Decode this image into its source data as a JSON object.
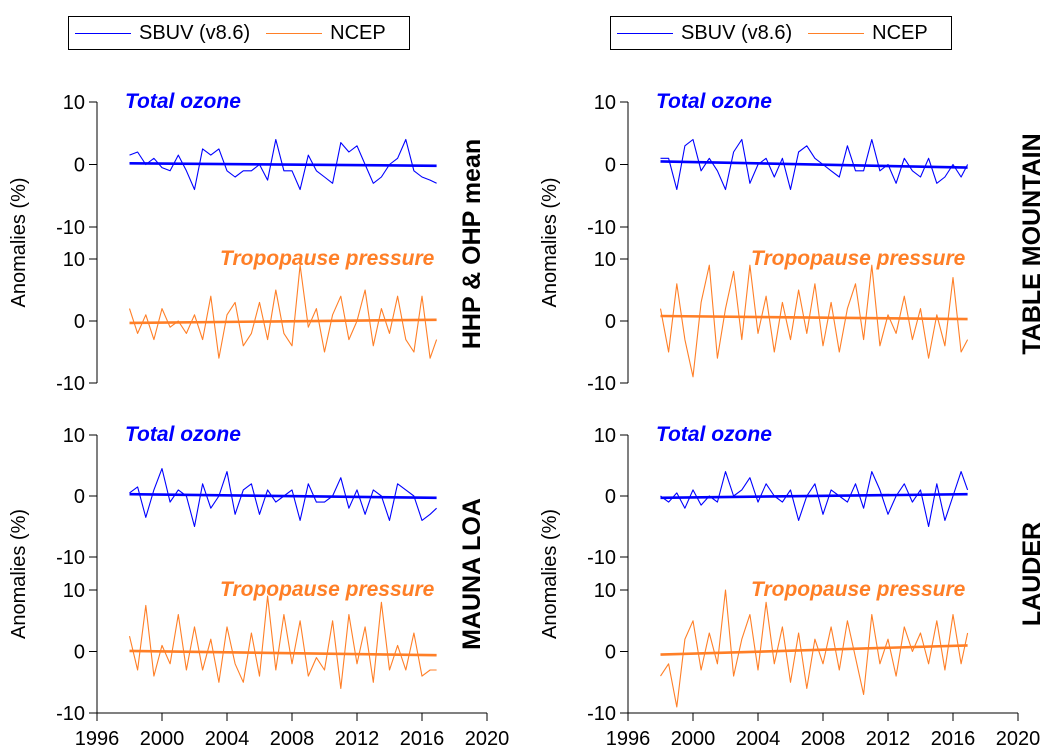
{
  "legends": [
    {
      "items": [
        {
          "label": "SBUV (v8.6)",
          "color": "#0000ff"
        },
        {
          "label": "NCEP",
          "color": "#ff7f27"
        }
      ]
    },
    {
      "items": [
        {
          "label": "SBUV (v8.6)",
          "color": "#0000ff"
        },
        {
          "label": "NCEP",
          "color": "#ff7f27"
        }
      ]
    }
  ],
  "ylabel": "Anomalies (%)",
  "x_ticks": [
    "1996",
    "2000",
    "2004",
    "2008",
    "2012",
    "2016",
    "2020"
  ],
  "chart_data": [
    {
      "type": "line",
      "station": "HHP & OHP mean",
      "xlim": [
        1996,
        2020
      ],
      "subplots": [
        {
          "title": "Total ozone",
          "ylim": [
            -10,
            10
          ],
          "yticks": [
            "10",
            "0",
            "-10"
          ],
          "color": "#0000ff",
          "series": [
            {
              "name": "SBUV (v8.6)",
              "x": [
                1998.0,
                1998.5,
                1999.0,
                1999.5,
                2000.0,
                2000.5,
                2001.0,
                2001.5,
                2002.0,
                2002.5,
                2003.0,
                2003.5,
                2004.0,
                2004.5,
                2005.0,
                2005.5,
                2006.0,
                2006.5,
                2007.0,
                2007.5,
                2008.0,
                2008.5,
                2009.0,
                2009.5,
                2010.0,
                2010.5,
                2011.0,
                2011.5,
                2012.0,
                2012.5,
                2013.0,
                2013.5,
                2014.0,
                2014.5,
                2015.0,
                2015.5,
                2016.0,
                2016.5,
                2016.9
              ],
              "y": [
                1.5,
                2,
                0,
                1,
                -0.5,
                -1,
                1.5,
                -1,
                -4,
                2.5,
                1.5,
                2.5,
                -1,
                -2,
                -1,
                -1,
                0,
                -2.5,
                4,
                -1,
                -1,
                -4,
                1.5,
                -1,
                -2,
                -3,
                3.5,
                2,
                3,
                0,
                -3,
                -2,
                0,
                1,
                4,
                -1,
                -2,
                -2.5,
                -3
              ]
            },
            {
              "name": "trend",
              "x": [
                1998,
                2016.9
              ],
              "y": [
                0.2,
                -0.2
              ]
            }
          ]
        },
        {
          "title": "Tropopause pressure",
          "ylim": [
            -10,
            10
          ],
          "yticks": [
            "10",
            "0",
            "-10"
          ],
          "color": "#ff7f27",
          "series": [
            {
              "name": "NCEP",
              "x": [
                1998.0,
                1998.5,
                1999.0,
                1999.5,
                2000.0,
                2000.5,
                2001.0,
                2001.5,
                2002.0,
                2002.5,
                2003.0,
                2003.5,
                2004.0,
                2004.5,
                2005.0,
                2005.5,
                2006.0,
                2006.5,
                2007.0,
                2007.5,
                2008.0,
                2008.5,
                2009.0,
                2009.5,
                2010.0,
                2010.5,
                2011.0,
                2011.5,
                2012.0,
                2012.5,
                2013.0,
                2013.5,
                2014.0,
                2014.5,
                2015.0,
                2015.5,
                2016.0,
                2016.5,
                2016.9
              ],
              "y": [
                2,
                -2,
                1,
                -3,
                2,
                -1,
                0,
                -2,
                1,
                -3,
                4,
                -6,
                1,
                3,
                -4,
                -2,
                3,
                -3,
                5,
                -2,
                -4,
                9,
                -1,
                2,
                -5,
                1,
                4,
                -3,
                0,
                5,
                -4,
                2,
                -2,
                4,
                -3,
                -5,
                4,
                -6,
                -3
              ]
            },
            {
              "name": "trend",
              "x": [
                1998,
                2016.9
              ],
              "y": [
                -0.3,
                0.2
              ]
            }
          ]
        }
      ]
    },
    {
      "type": "line",
      "station": "TABLE MOUNTAIN",
      "xlim": [
        1996,
        2020
      ],
      "subplots": [
        {
          "title": "Total ozone",
          "ylim": [
            -10,
            10
          ],
          "yticks": [
            "10",
            "0",
            "-10"
          ],
          "color": "#0000ff",
          "series": [
            {
              "name": "SBUV (v8.6)",
              "x": [
                1998.0,
                1998.5,
                1999.0,
                1999.5,
                2000.0,
                2000.5,
                2001.0,
                2001.5,
                2002.0,
                2002.5,
                2003.0,
                2003.5,
                2004.0,
                2004.5,
                2005.0,
                2005.5,
                2006.0,
                2006.5,
                2007.0,
                2007.5,
                2008.0,
                2008.5,
                2009.0,
                2009.5,
                2010.0,
                2010.5,
                2011.0,
                2011.5,
                2012.0,
                2012.5,
                2013.0,
                2013.5,
                2014.0,
                2014.5,
                2015.0,
                2015.5,
                2016.0,
                2016.5,
                2016.9
              ],
              "y": [
                1,
                1,
                -4,
                3,
                4,
                -1,
                1,
                -1,
                -4,
                2,
                4,
                -3,
                0,
                1,
                -2,
                1,
                -4,
                2,
                3,
                1,
                0,
                -1,
                -2,
                3,
                -1,
                -1,
                4,
                -1,
                0,
                -3,
                1,
                -1,
                -2,
                1,
                -3,
                -2,
                0,
                -2,
                0
              ]
            },
            {
              "name": "trend",
              "x": [
                1998,
                2016.9
              ],
              "y": [
                0.5,
                -0.5
              ]
            }
          ]
        },
        {
          "title": "Tropopause pressure",
          "ylim": [
            -10,
            10
          ],
          "yticks": [
            "10",
            "0",
            "-10"
          ],
          "color": "#ff7f27",
          "series": [
            {
              "name": "NCEP",
              "x": [
                1998.0,
                1998.5,
                1999.0,
                1999.5,
                2000.0,
                2000.5,
                2001.0,
                2001.5,
                2002.0,
                2002.5,
                2003.0,
                2003.5,
                2004.0,
                2004.5,
                2005.0,
                2005.5,
                2006.0,
                2006.5,
                2007.0,
                2007.5,
                2008.0,
                2008.5,
                2009.0,
                2009.5,
                2010.0,
                2010.5,
                2011.0,
                2011.5,
                2012.0,
                2012.5,
                2013.0,
                2013.5,
                2014.0,
                2014.5,
                2015.0,
                2015.5,
                2016.0,
                2016.5,
                2016.9
              ],
              "y": [
                2,
                -5,
                6,
                -3,
                -9,
                3,
                9,
                -6,
                2,
                8,
                -3,
                9,
                -2,
                4,
                -5,
                3,
                -3,
                5,
                -2,
                6,
                -4,
                3,
                -5,
                2,
                6,
                -3,
                9,
                -4,
                1,
                -2,
                4,
                -3,
                2,
                -6,
                1,
                -4,
                7,
                -5,
                -3
              ]
            },
            {
              "name": "trend",
              "x": [
                1998,
                2016.9
              ],
              "y": [
                0.8,
                0.3
              ]
            }
          ]
        }
      ]
    },
    {
      "type": "line",
      "station": "MAUNA LOA",
      "xlim": [
        1996,
        2020
      ],
      "subplots": [
        {
          "title": "Total ozone",
          "ylim": [
            -10,
            10
          ],
          "yticks": [
            "10",
            "0",
            "-10"
          ],
          "color": "#0000ff",
          "series": [
            {
              "name": "SBUV (v8.6)",
              "x": [
                1998.0,
                1998.5,
                1999.0,
                1999.5,
                2000.0,
                2000.5,
                2001.0,
                2001.5,
                2002.0,
                2002.5,
                2003.0,
                2003.5,
                2004.0,
                2004.5,
                2005.0,
                2005.5,
                2006.0,
                2006.5,
                2007.0,
                2007.5,
                2008.0,
                2008.5,
                2009.0,
                2009.5,
                2010.0,
                2010.5,
                2011.0,
                2011.5,
                2012.0,
                2012.5,
                2013.0,
                2013.5,
                2014.0,
                2014.5,
                2015.0,
                2015.5,
                2016.0,
                2016.5,
                2016.9
              ],
              "y": [
                0.5,
                1.5,
                -3.5,
                1,
                4.5,
                -1,
                1,
                0,
                -5,
                2,
                -2,
                0,
                4,
                -3,
                1,
                2,
                -3,
                1,
                -1,
                0,
                1,
                -4,
                2,
                -1,
                -1,
                0,
                3,
                -2,
                1,
                -3,
                1,
                0,
                -4,
                2,
                1,
                0,
                -4,
                -3,
                -2
              ]
            },
            {
              "name": "trend",
              "x": [
                1998,
                2016.9
              ],
              "y": [
                0.3,
                -0.3
              ]
            }
          ]
        },
        {
          "title": "Tropopause pressure",
          "ylim": [
            -10,
            10
          ],
          "yticks": [
            "10",
            "0",
            "-10"
          ],
          "color": "#ff7f27",
          "series": [
            {
              "name": "NCEP",
              "x": [
                1998.0,
                1998.5,
                1999.0,
                1999.5,
                2000.0,
                2000.5,
                2001.0,
                2001.5,
                2002.0,
                2002.5,
                2003.0,
                2003.5,
                2004.0,
                2004.5,
                2005.0,
                2005.5,
                2006.0,
                2006.5,
                2007.0,
                2007.5,
                2008.0,
                2008.5,
                2009.0,
                2009.5,
                2010.0,
                2010.5,
                2011.0,
                2011.5,
                2012.0,
                2012.5,
                2013.0,
                2013.5,
                2014.0,
                2014.5,
                2015.0,
                2015.5,
                2016.0,
                2016.5,
                2016.9
              ],
              "y": [
                2.5,
                -3,
                7.5,
                -4,
                1,
                -2,
                6,
                -3,
                4,
                -3,
                2,
                -5,
                4,
                -2,
                -5,
                3,
                -4,
                9,
                -3,
                6,
                -2,
                5,
                -4,
                -1,
                -3,
                5,
                -6,
                6,
                -2,
                4,
                -5,
                8,
                -3,
                1,
                -3,
                3,
                -4,
                -3,
                -3
              ]
            },
            {
              "name": "trend",
              "x": [
                1998,
                2016.9
              ],
              "y": [
                0.1,
                -0.6
              ]
            }
          ]
        }
      ]
    },
    {
      "type": "line",
      "station": "LAUDER",
      "xlim": [
        1996,
        2020
      ],
      "subplots": [
        {
          "title": "Total ozone",
          "ylim": [
            -10,
            10
          ],
          "yticks": [
            "10",
            "0",
            "-10"
          ],
          "color": "#0000ff",
          "series": [
            {
              "name": "SBUV (v8.6)",
              "x": [
                1998.0,
                1998.5,
                1999.0,
                1999.5,
                2000.0,
                2000.5,
                2001.0,
                2001.5,
                2002.0,
                2002.5,
                2003.0,
                2003.5,
                2004.0,
                2004.5,
                2005.0,
                2005.5,
                2006.0,
                2006.5,
                2007.0,
                2007.5,
                2008.0,
                2008.5,
                2009.0,
                2009.5,
                2010.0,
                2010.5,
                2011.0,
                2011.5,
                2012.0,
                2012.5,
                2013.0,
                2013.5,
                2014.0,
                2014.5,
                2015.0,
                2015.5,
                2016.0,
                2016.5,
                2016.9
              ],
              "y": [
                0,
                -1,
                0.5,
                -2,
                1,
                -1.5,
                0,
                -1,
                4,
                0,
                1,
                3,
                -1,
                2,
                0,
                -1,
                1,
                -4,
                0,
                2,
                -3,
                1,
                0,
                -1,
                2,
                -2,
                4,
                1,
                -3,
                0,
                2,
                -1,
                1,
                -5,
                2,
                -4,
                0,
                4,
                1
              ]
            },
            {
              "name": "trend",
              "x": [
                1998,
                2016.9
              ],
              "y": [
                -0.3,
                0.3
              ]
            }
          ]
        },
        {
          "title": "Tropopause pressure",
          "ylim": [
            -10,
            10
          ],
          "yticks": [
            "10",
            "0",
            "-10"
          ],
          "color": "#ff7f27",
          "series": [
            {
              "name": "NCEP",
              "x": [
                1998.0,
                1998.5,
                1999.0,
                1999.5,
                2000.0,
                2000.5,
                2001.0,
                2001.5,
                2002.0,
                2002.5,
                2003.0,
                2003.5,
                2004.0,
                2004.5,
                2005.0,
                2005.5,
                2006.0,
                2006.5,
                2007.0,
                2007.5,
                2008.0,
                2008.5,
                2009.0,
                2009.5,
                2010.0,
                2010.5,
                2011.0,
                2011.5,
                2012.0,
                2012.5,
                2013.0,
                2013.5,
                2014.0,
                2014.5,
                2015.0,
                2015.5,
                2016.0,
                2016.5,
                2016.9
              ],
              "y": [
                -4,
                -2,
                -9,
                2,
                5,
                -3,
                3,
                -2,
                10,
                -4,
                2,
                6,
                -3,
                8,
                -2,
                4,
                -5,
                3,
                -6,
                2,
                -2,
                4,
                -3,
                5,
                -1,
                -7,
                6,
                -2,
                2,
                -4,
                4,
                0,
                3,
                -2,
                5,
                -3,
                6,
                -2,
                3
              ]
            },
            {
              "name": "trend",
              "x": [
                1998,
                2016.9
              ],
              "y": [
                -0.5,
                1.0
              ]
            }
          ]
        }
      ]
    }
  ]
}
